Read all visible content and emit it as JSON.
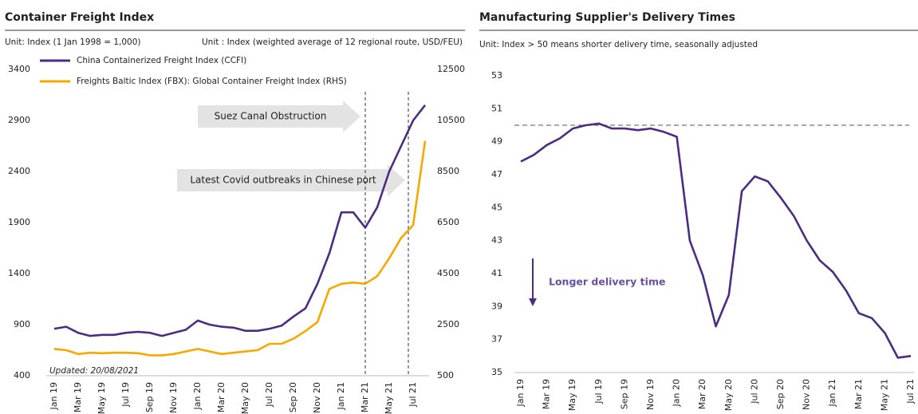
{
  "chart_data": [
    {
      "type": "line",
      "title": "Container Freight Index",
      "y_label": "Unit: Index (1 Jan 1998 = 1,000)",
      "y2_label": "Unit : Index (weighted average of 12 regional route, USD/FEU)",
      "categories": [
        "Jan 19",
        null,
        "Mar 19",
        null,
        "May 19",
        null,
        "Jul 19",
        null,
        "Sep 19",
        null,
        "Nov 19",
        null,
        "Jan 20",
        null,
        "Mar 20",
        null,
        "May 20",
        null,
        "Jul 20",
        null,
        "Sep 20",
        null,
        "Nov 20",
        null,
        "Jan 21",
        null,
        "Mar 21",
        null,
        "May 21",
        null,
        "Jul 21",
        null
      ],
      "series": [
        {
          "name": "China Containerized Freight Index (CCFI)",
          "color": "#4b2c82",
          "values": [
            860,
            880,
            820,
            790,
            800,
            800,
            820,
            830,
            820,
            790,
            820,
            850,
            940,
            900,
            880,
            870,
            840,
            840,
            860,
            890,
            980,
            1060,
            1300,
            1600,
            2000,
            2000,
            1850,
            2050,
            2400,
            2650,
            2900,
            3050
          ]
        },
        {
          "name": "Freights Baltic Index (FBX): Global Container Freight Index (RHS)",
          "color": "#f5a800",
          "axis": "y2",
          "values": [
            1550,
            1500,
            1350,
            1400,
            1380,
            1400,
            1400,
            1380,
            1300,
            1300,
            1350,
            1450,
            1550,
            1450,
            1350,
            1400,
            1450,
            1500,
            1750,
            1750,
            1950,
            2250,
            2600,
            3900,
            4100,
            4150,
            4100,
            4400,
            5100,
            5900,
            6400,
            9700
          ]
        }
      ],
      "ylim": [
        400,
        3400
      ],
      "yticks": [
        400,
        900,
        1400,
        1900,
        2400,
        2900,
        3400
      ],
      "y2lim": [
        500,
        12500
      ],
      "y2ticks": [
        500,
        2500,
        4500,
        6500,
        8500,
        10500,
        12500
      ],
      "legend": "top-left",
      "annotations": [
        {
          "text": "Suez Canal Obstruction",
          "x": "Mar 21"
        },
        {
          "text": "Latest Covid outbreaks in Chinese port",
          "x": "Jul 21"
        }
      ],
      "note": "Updated: 20/08/2021"
    },
    {
      "type": "line",
      "title": "Manufacturing Supplier's Delivery Times",
      "y_label": "Unit: Index > 50 means shorter delivery time, seasonally adjusted",
      "categories": [
        "Jan 19",
        null,
        "Mar 19",
        null,
        "May 19",
        null,
        "Jul 19",
        null,
        "Sep 19",
        null,
        "Nov 19",
        null,
        "Jan 20",
        null,
        "Mar 20",
        null,
        "May 20",
        null,
        "Jul 20",
        null,
        "Sep 20",
        null,
        "Nov 20",
        null,
        "Jan 21",
        null,
        "Mar 21",
        null,
        "May 21",
        null,
        "Jul 21"
      ],
      "series": [
        {
          "color": "#4b2c82",
          "values": [
            47.8,
            48.2,
            48.8,
            49.2,
            49.8,
            50.0,
            50.1,
            49.8,
            49.8,
            49.7,
            49.8,
            49.6,
            49.3,
            43.0,
            40.9,
            37.8,
            39.7,
            46.0,
            46.9,
            46.6,
            45.6,
            44.5,
            43.0,
            41.8,
            41.1,
            40.0,
            38.6,
            38.3,
            37.4,
            35.9,
            36.0
          ]
        }
      ],
      "ylim": [
        35,
        53
      ],
      "yticks": [
        35,
        37,
        39,
        41,
        43,
        45,
        47,
        49,
        51,
        53
      ],
      "reference": 50,
      "annotation": "Longer delivery time"
    }
  ]
}
